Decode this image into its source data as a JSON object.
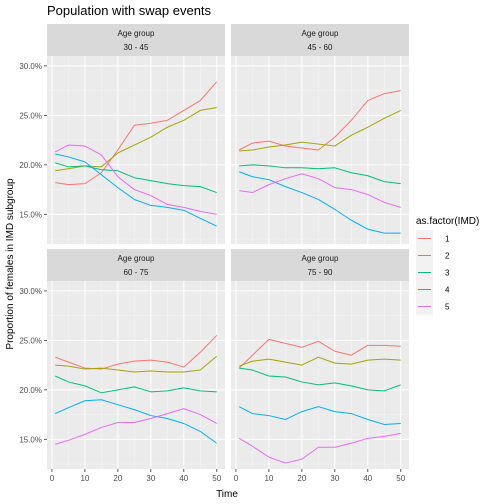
{
  "chart_data": {
    "type": "line",
    "title": "Population with swap events",
    "xlabel": "Time",
    "ylabel": "Proportion of females in IMD subgroup",
    "xlim": [
      -1.5,
      52.5
    ],
    "ylim": [
      0.12,
      0.31
    ],
    "x_ticks": [
      0,
      10,
      20,
      30,
      40,
      50
    ],
    "y_ticks": [
      0.15,
      0.2,
      0.25,
      0.3
    ],
    "y_tick_labels": [
      "15.0%",
      "20.0%",
      "25.0%",
      "30.0%"
    ],
    "grid": true,
    "legend": {
      "title": "as.factor(IMD)",
      "placement": "right",
      "entries": [
        "1",
        "2",
        "3",
        "4",
        "5"
      ]
    },
    "series_colors": [
      "#F8766D",
      "#A3A500",
      "#00BF7D",
      "#00B0F6",
      "#E76BF3"
    ],
    "x": [
      1,
      5,
      10,
      15,
      20,
      25,
      30,
      35,
      40,
      45,
      50
    ],
    "facets": [
      {
        "strip_title": "Age group",
        "strip_label": "30 - 45",
        "series": [
          {
            "name": "1",
            "values": [
              0.182,
              0.18,
              0.181,
              0.192,
              0.215,
              0.24,
              0.242,
              0.245,
              0.255,
              0.265,
              0.284
            ]
          },
          {
            "name": "2",
            "values": [
              0.194,
              0.196,
              0.199,
              0.198,
              0.212,
              0.22,
              0.228,
              0.238,
              0.245,
              0.255,
              0.258
            ]
          },
          {
            "name": "3",
            "values": [
              0.202,
              0.198,
              0.199,
              0.195,
              0.194,
              0.187,
              0.184,
              0.181,
              0.179,
              0.178,
              0.172
            ]
          },
          {
            "name": "4",
            "values": [
              0.211,
              0.208,
              0.203,
              0.19,
              0.177,
              0.165,
              0.159,
              0.157,
              0.154,
              0.146,
              0.138
            ]
          },
          {
            "name": "5",
            "values": [
              0.213,
              0.22,
              0.219,
              0.21,
              0.188,
              0.175,
              0.169,
              0.16,
              0.157,
              0.153,
              0.15
            ]
          }
        ]
      },
      {
        "strip_title": "Age group",
        "strip_label": "45 - 60",
        "series": [
          {
            "name": "1",
            "values": [
              0.215,
              0.222,
              0.224,
              0.219,
              0.217,
              0.215,
              0.228,
              0.245,
              0.265,
              0.272,
              0.275
            ]
          },
          {
            "name": "2",
            "values": [
              0.214,
              0.215,
              0.218,
              0.22,
              0.223,
              0.221,
              0.219,
              0.23,
              0.238,
              0.247,
              0.255
            ]
          },
          {
            "name": "3",
            "values": [
              0.199,
              0.2,
              0.199,
              0.197,
              0.197,
              0.196,
              0.197,
              0.192,
              0.189,
              0.183,
              0.181
            ]
          },
          {
            "name": "4",
            "values": [
              0.193,
              0.188,
              0.185,
              0.178,
              0.172,
              0.165,
              0.155,
              0.144,
              0.135,
              0.131,
              0.131
            ]
          },
          {
            "name": "5",
            "values": [
              0.174,
              0.172,
              0.18,
              0.186,
              0.191,
              0.186,
              0.177,
              0.175,
              0.17,
              0.162,
              0.157
            ]
          }
        ]
      },
      {
        "strip_title": "Age group",
        "strip_label": "60 - 75",
        "series": [
          {
            "name": "1",
            "values": [
              0.233,
              0.228,
              0.222,
              0.221,
              0.226,
              0.229,
              0.23,
              0.228,
              0.223,
              0.238,
              0.255
            ]
          },
          {
            "name": "2",
            "values": [
              0.225,
              0.224,
              0.221,
              0.222,
              0.22,
              0.218,
              0.219,
              0.218,
              0.218,
              0.22,
              0.234
            ]
          },
          {
            "name": "3",
            "values": [
              0.214,
              0.208,
              0.204,
              0.197,
              0.2,
              0.203,
              0.198,
              0.199,
              0.202,
              0.199,
              0.198
            ]
          },
          {
            "name": "4",
            "values": [
              0.176,
              0.182,
              0.189,
              0.19,
              0.185,
              0.18,
              0.174,
              0.171,
              0.166,
              0.158,
              0.146
            ]
          },
          {
            "name": "5",
            "values": [
              0.145,
              0.149,
              0.155,
              0.162,
              0.167,
              0.167,
              0.171,
              0.176,
              0.181,
              0.175,
              0.166
            ]
          }
        ]
      },
      {
        "strip_title": "Age group",
        "strip_label": "75 - 90",
        "series": [
          {
            "name": "1",
            "values": [
              0.222,
              0.235,
              0.251,
              0.247,
              0.243,
              0.249,
              0.239,
              0.235,
              0.245,
              0.245,
              0.244
            ]
          },
          {
            "name": "2",
            "values": [
              0.224,
              0.229,
              0.231,
              0.228,
              0.225,
              0.233,
              0.227,
              0.226,
              0.23,
              0.231,
              0.23
            ]
          },
          {
            "name": "3",
            "values": [
              0.222,
              0.22,
              0.214,
              0.213,
              0.208,
              0.205,
              0.207,
              0.204,
              0.2,
              0.199,
              0.205
            ]
          },
          {
            "name": "4",
            "values": [
              0.183,
              0.176,
              0.174,
              0.17,
              0.178,
              0.183,
              0.178,
              0.176,
              0.17,
              0.165,
              0.166
            ]
          },
          {
            "name": "5",
            "values": [
              0.151,
              0.143,
              0.132,
              0.126,
              0.13,
              0.142,
              0.142,
              0.146,
              0.151,
              0.153,
              0.156
            ]
          }
        ]
      }
    ]
  }
}
